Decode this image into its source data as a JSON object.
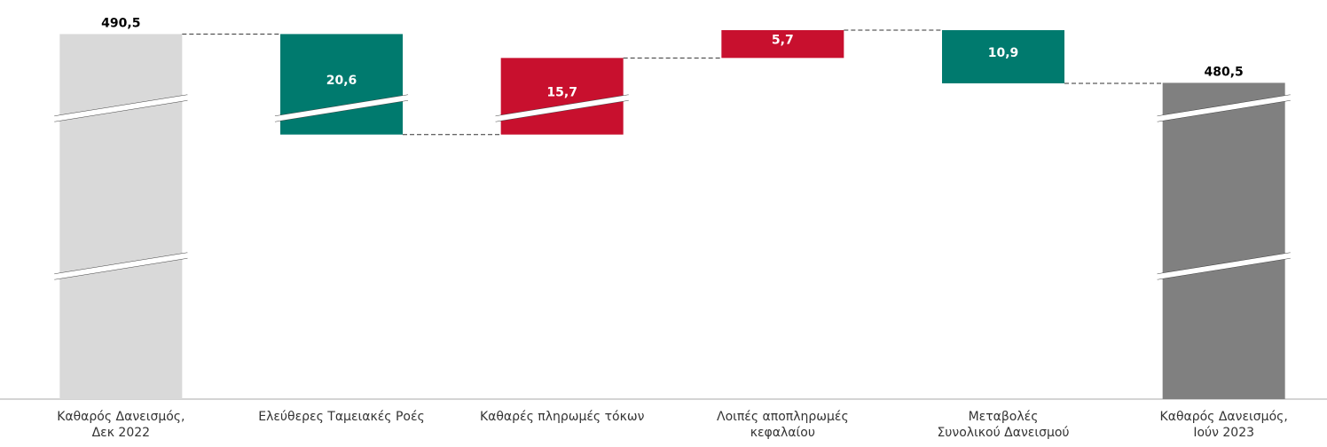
{
  "chart_data": {
    "type": "waterfall",
    "categories": [
      [
        "Καθαρός Δανεισμός,",
        "Δεκ 2022"
      ],
      [
        "Ελεύθερες Ταμειακές Ροές"
      ],
      [
        "Καθαρές πληρωμές τόκων"
      ],
      [
        "Λοιπές αποπληρωμές",
        "κεφαλαίου"
      ],
      [
        "Μεταβολές",
        "Συνολικού Δανεισμού"
      ],
      [
        "Καθαρός Δανεισμός,",
        "Ιούν 2023"
      ]
    ],
    "values": [
      490.5,
      -20.6,
      15.7,
      5.7,
      -10.9,
      480.5
    ],
    "value_labels": [
      "490,5",
      "20,6",
      "15,7",
      "5,7",
      "10,9",
      "480,5"
    ],
    "colors": [
      "#d9d9d9",
      "#007a6e",
      "#c8102e",
      "#c8102e",
      "#007a6e",
      "#808080"
    ],
    "totals": [
      true,
      false,
      false,
      false,
      false,
      true
    ]
  }
}
